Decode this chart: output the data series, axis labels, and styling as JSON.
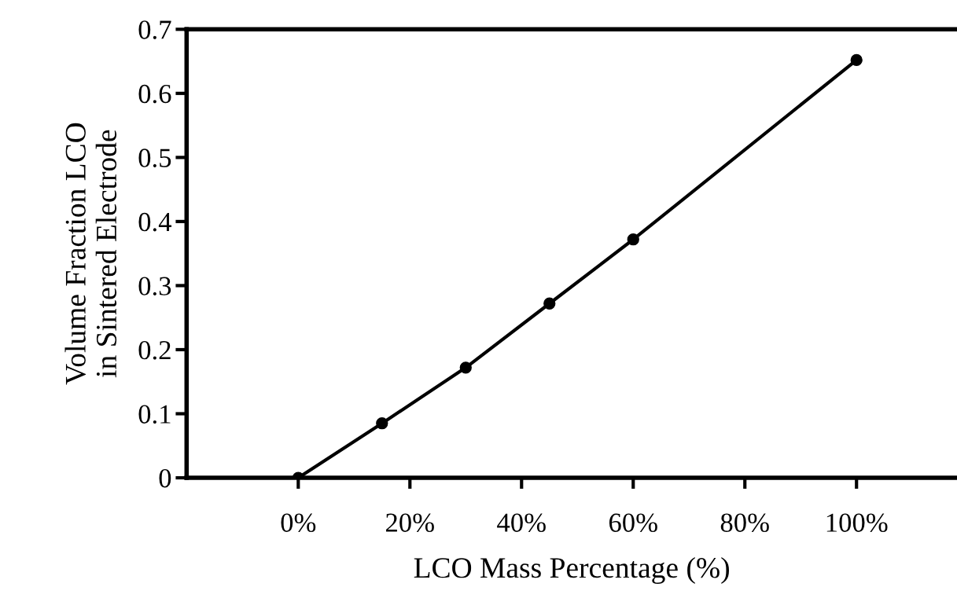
{
  "chart_data": {
    "type": "line",
    "xlabel": "LCO Mass Percentage (%)",
    "ylabel": "Volume Fraction LCO\nin Sintered Electrode",
    "x": [
      0,
      15,
      30,
      45,
      60,
      100
    ],
    "series": [
      {
        "color": "#000000",
        "values": [
          0,
          0.085,
          0.172,
          0.272,
          0.372,
          0.652
        ]
      }
    ],
    "xlim": [
      -20,
      118
    ],
    "ylim": [
      0,
      0.7
    ],
    "xticks": [
      {
        "value": 0,
        "label": "0%"
      },
      {
        "value": 20,
        "label": "20%"
      },
      {
        "value": 40,
        "label": "40%"
      },
      {
        "value": 60,
        "label": "60%"
      },
      {
        "value": 80,
        "label": "80%"
      },
      {
        "value": 100,
        "label": "100%"
      }
    ],
    "yticks": [
      0,
      0.1,
      0.2,
      0.3,
      0.4,
      0.5,
      0.6,
      0.7
    ],
    "grid": false,
    "legend": false,
    "marker": "circle",
    "line_style": "solid"
  }
}
